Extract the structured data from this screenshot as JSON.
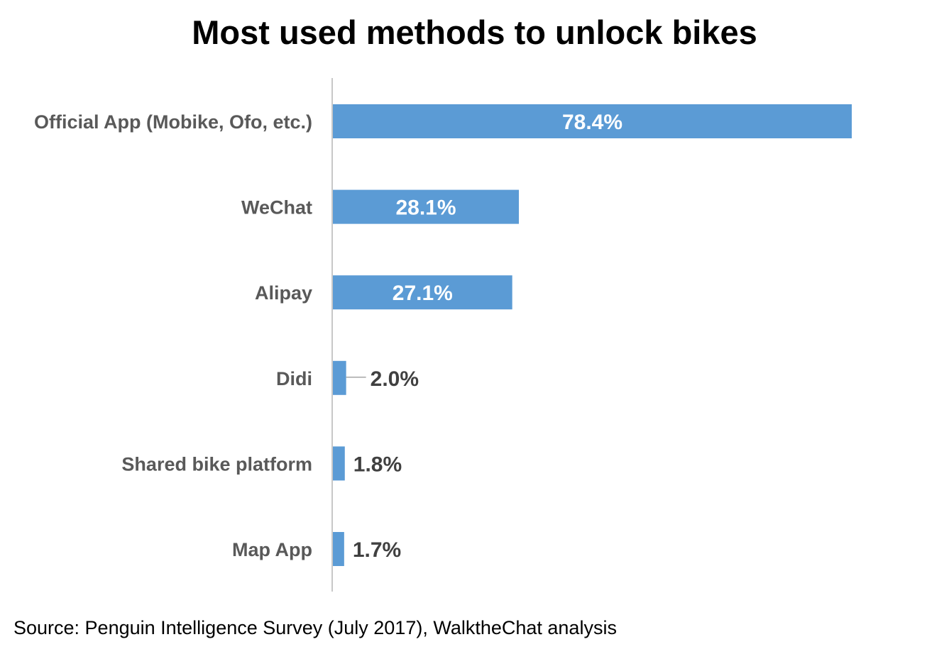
{
  "chart_data": {
    "type": "bar",
    "orientation": "horizontal",
    "title": "Most used methods to unlock bikes",
    "categories": [
      "Official App (Mobike, Ofo, etc.)",
      "WeChat",
      "Alipay",
      "Didi",
      "Shared bike platform",
      "Map App"
    ],
    "values": [
      78.4,
      28.1,
      27.1,
      2.0,
      1.8,
      1.7
    ],
    "value_labels": [
      "78.4%",
      "28.1%",
      "27.1%",
      "2.0%",
      "1.8%",
      "1.7%"
    ],
    "unit": "%",
    "xlim": [
      0,
      100
    ],
    "grid": false,
    "legend": "none",
    "bar_color": "#5B9BD5",
    "source": "Source: Penguin Intelligence Survey (July 2017), WalktheChat analysis"
  }
}
